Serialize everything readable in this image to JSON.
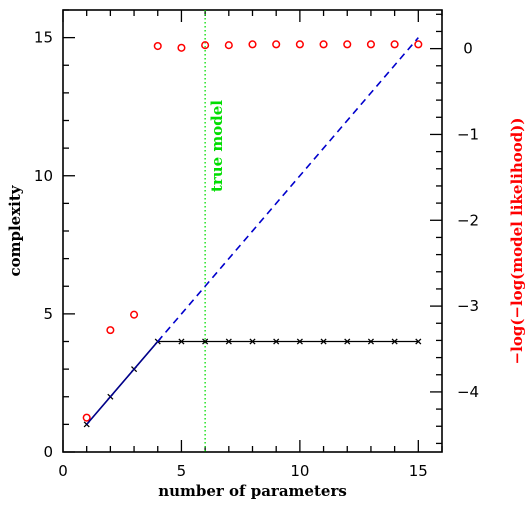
{
  "chart_data": {
    "type": "line",
    "xlabel": "number of parameters",
    "ylabel": "complexity",
    "y2label": "−log(−log(model likelihood))",
    "xlim": [
      0,
      16
    ],
    "ylim": [
      0,
      16
    ],
    "y2lim": [
      -4.7,
      0.45
    ],
    "xticks": [
      0,
      5,
      10,
      15
    ],
    "yticks": [
      0,
      5,
      10,
      15
    ],
    "y2ticks": [
      0,
      -1,
      -2,
      -3,
      -4
    ],
    "y2tick_labels": [
      "0",
      "−1",
      "−2",
      "−3",
      "−4"
    ],
    "annotation": {
      "text": "true model",
      "x": 6
    },
    "series": [
      {
        "marker": "x",
        "color": "#000000",
        "axis": "left",
        "x": [
          1,
          2,
          3,
          4,
          5,
          6,
          7,
          8,
          9,
          10,
          11,
          12,
          13,
          14,
          15
        ],
        "y": [
          1,
          2,
          3,
          4,
          4,
          4,
          4,
          4,
          4,
          4,
          4,
          4,
          4,
          4,
          4
        ]
      },
      {
        "marker": "o",
        "color": "#ff0000",
        "axis": "right",
        "x": [
          1,
          2,
          3,
          4,
          5,
          6,
          7,
          8,
          9,
          10,
          11,
          12,
          13,
          14,
          15
        ],
        "y": [
          -4.3,
          -3.28,
          -3.1,
          0.03,
          0.01,
          0.04,
          0.04,
          0.05,
          0.05,
          0.05,
          0.05,
          0.05,
          0.05,
          0.05,
          0.05
        ]
      },
      {
        "style": "dashed",
        "color": "#0000cc",
        "axis": "left",
        "x": [
          4,
          15
        ],
        "y": [
          4,
          15
        ]
      },
      {
        "style": "solid",
        "color": "#00008b",
        "axis": "left",
        "x": [
          1,
          4
        ],
        "y": [
          1,
          4
        ]
      }
    ],
    "colors": {
      "left_axis": "#000000",
      "right_axis": "#ff0000",
      "annotation": "#00dd00"
    }
  }
}
